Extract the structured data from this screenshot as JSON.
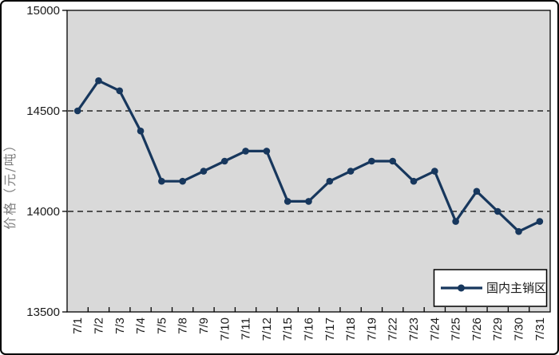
{
  "chart_data": {
    "type": "line",
    "title": "",
    "xlabel": "",
    "ylabel": "价格（元/吨）",
    "categories": [
      "7/1",
      "7/2",
      "7/3",
      "7/4",
      "7/5",
      "7/8",
      "7/9",
      "7/10",
      "7/11",
      "7/12",
      "7/15",
      "7/16",
      "7/17",
      "7/18",
      "7/19",
      "7/22",
      "7/23",
      "7/24",
      "7/25",
      "7/26",
      "7/29",
      "7/30",
      "7/31"
    ],
    "series": [
      {
        "name": "国内主销区",
        "values": [
          14500,
          14650,
          14600,
          14400,
          14150,
          14150,
          14200,
          14250,
          14300,
          14300,
          14050,
          14050,
          14150,
          14200,
          14250,
          14250,
          14150,
          14200,
          13950,
          14100,
          14000,
          13900,
          13950
        ]
      }
    ],
    "ylim": [
      13500,
      15000
    ],
    "yticks": [
      15000,
      14500,
      14000,
      13500
    ],
    "gridlines": [
      14500,
      14000
    ],
    "grid_style": "dashed",
    "legend_position": "bottom-right",
    "colors": {
      "line": "#17375D",
      "marker": "#17375D",
      "plot_background": "#D9D9D9",
      "plot_border": "#000000",
      "gridline": "#262626",
      "tick_label": "#1a1a1a",
      "axis_title": "#808080",
      "legend_background": "#ffffff",
      "legend_border": "#000000",
      "legend_text": "#1a1a1a"
    }
  }
}
